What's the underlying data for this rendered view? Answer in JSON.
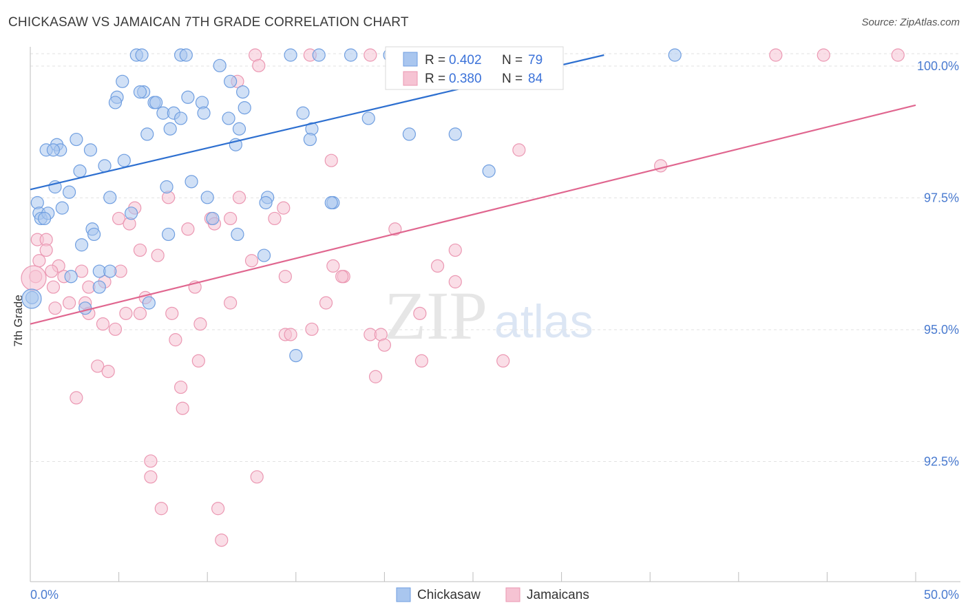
{
  "title": "CHICKASAW VS JAMAICAN 7TH GRADE CORRELATION CHART",
  "source": "Source: ZipAtlas.com",
  "watermark": {
    "left": "ZIP",
    "right": "atlas"
  },
  "legend_top": [
    {
      "r_label": "R = ",
      "r_value": "0.402",
      "n_label": "N = ",
      "n_value": "79"
    },
    {
      "r_label": "R = ",
      "r_value": "0.380",
      "n_label": "N = ",
      "n_value": "84"
    }
  ],
  "legend_bottom": [
    "Chickasaw",
    "Jamaicans"
  ],
  "colors": {
    "blue_fill": "#a9c6ef",
    "blue_stroke": "#6f9ee0",
    "blue_line": "#2d6fd0",
    "pink_fill": "#f6c3d3",
    "pink_stroke": "#eb97b2",
    "pink_line": "#e0668f",
    "tick": "#4a7bd0",
    "grid": "#e2e2e2"
  },
  "chart_data": {
    "type": "scatter",
    "title": "CHICKASAW VS JAMAICAN 7TH GRADE CORRELATION CHART",
    "xlabel": "",
    "ylabel": "7th Grade",
    "xlim": [
      0,
      50
    ],
    "ylim": [
      90.0,
      100.2
    ],
    "x_tick_labels": [
      "0.0%",
      "50.0%"
    ],
    "y_ticks": [
      {
        "value": 100.0,
        "label": "100.0%"
      },
      {
        "value": 97.5,
        "label": "97.5%"
      },
      {
        "value": 95.0,
        "label": "95.0%"
      },
      {
        "value": 92.5,
        "label": "92.5%"
      }
    ],
    "grid": "horizontal dashed",
    "series": [
      {
        "name": "Chickasaw",
        "color": "#a9c6ef",
        "trend": {
          "x": [
            0,
            32.4
          ],
          "y": [
            97.45,
            100.0
          ]
        },
        "points": [
          [
            6.0,
            100.0
          ],
          [
            6.3,
            100.0
          ],
          [
            8.5,
            100.0
          ],
          [
            8.8,
            100.0
          ],
          [
            14.7,
            100.0
          ],
          [
            16.3,
            100.0
          ],
          [
            18.1,
            100.0
          ],
          [
            20.3,
            100.0
          ],
          [
            36.4,
            100.0
          ],
          [
            10.7,
            99.8
          ],
          [
            5.2,
            99.5
          ],
          [
            11.3,
            99.5
          ],
          [
            6.4,
            99.3
          ],
          [
            6.2,
            99.3
          ],
          [
            12.0,
            99.3
          ],
          [
            4.9,
            99.2
          ],
          [
            8.9,
            99.2
          ],
          [
            4.8,
            99.1
          ],
          [
            7.0,
            99.1
          ],
          [
            7.1,
            99.1
          ],
          [
            9.7,
            99.1
          ],
          [
            9.8,
            98.9
          ],
          [
            12.1,
            99.0
          ],
          [
            7.5,
            98.9
          ],
          [
            8.1,
            98.9
          ],
          [
            11.2,
            98.8
          ],
          [
            15.4,
            98.9
          ],
          [
            8.5,
            98.8
          ],
          [
            19.1,
            98.8
          ],
          [
            7.9,
            98.6
          ],
          [
            11.8,
            98.6
          ],
          [
            15.9,
            98.6
          ],
          [
            21.4,
            98.5
          ],
          [
            6.6,
            98.5
          ],
          [
            24.0,
            98.5
          ],
          [
            2.6,
            98.4
          ],
          [
            11.6,
            98.3
          ],
          [
            15.8,
            98.4
          ],
          [
            0.9,
            98.2
          ],
          [
            1.5,
            98.3
          ],
          [
            1.7,
            98.2
          ],
          [
            1.3,
            98.2
          ],
          [
            3.4,
            98.2
          ],
          [
            5.3,
            98.0
          ],
          [
            4.2,
            97.9
          ],
          [
            2.8,
            97.8
          ],
          [
            25.9,
            97.8
          ],
          [
            9.1,
            97.6
          ],
          [
            1.4,
            97.5
          ],
          [
            2.2,
            97.4
          ],
          [
            7.7,
            97.5
          ],
          [
            10.0,
            97.3
          ],
          [
            13.4,
            97.3
          ],
          [
            4.5,
            97.3
          ],
          [
            0.4,
            97.2
          ],
          [
            1.8,
            97.1
          ],
          [
            13.3,
            97.2
          ],
          [
            17.1,
            97.2
          ],
          [
            5.7,
            97.0
          ],
          [
            0.5,
            97.0
          ],
          [
            0.6,
            96.9
          ],
          [
            1.0,
            97.0
          ],
          [
            10.3,
            96.9
          ],
          [
            3.5,
            96.7
          ],
          [
            3.6,
            96.6
          ],
          [
            7.8,
            96.6
          ],
          [
            2.9,
            96.4
          ],
          [
            13.2,
            96.2
          ],
          [
            3.9,
            95.9
          ],
          [
            4.5,
            95.9
          ],
          [
            2.3,
            95.8
          ],
          [
            3.9,
            95.6
          ],
          [
            6.7,
            95.3
          ],
          [
            3.1,
            95.2
          ],
          [
            0.1,
            95.4
          ],
          [
            15.0,
            94.3
          ],
          [
            11.7,
            96.6
          ],
          [
            17.0,
            97.2
          ],
          [
            0.8,
            96.9
          ]
        ]
      },
      {
        "name": "Jamaicans",
        "color": "#f6c3d3",
        "trend": {
          "x": [
            0,
            50
          ],
          "y": [
            94.9,
            99.05
          ]
        },
        "points": [
          [
            12.7,
            100.0
          ],
          [
            15.8,
            100.0
          ],
          [
            19.2,
            100.0
          ],
          [
            27.5,
            100.0
          ],
          [
            42.1,
            100.0
          ],
          [
            44.8,
            100.0
          ],
          [
            12.9,
            99.8
          ],
          [
            11.7,
            99.5
          ],
          [
            27.6,
            98.2
          ],
          [
            17.0,
            98.0
          ],
          [
            35.6,
            97.9
          ],
          [
            7.8,
            97.3
          ],
          [
            11.8,
            97.3
          ],
          [
            14.3,
            97.1
          ],
          [
            5.9,
            97.1
          ],
          [
            10.2,
            96.9
          ],
          [
            11.3,
            96.9
          ],
          [
            5.0,
            96.9
          ],
          [
            10.4,
            96.8
          ],
          [
            5.6,
            96.8
          ],
          [
            8.9,
            96.7
          ],
          [
            20.6,
            96.7
          ],
          [
            0.4,
            96.5
          ],
          [
            0.9,
            96.5
          ],
          [
            6.2,
            96.3
          ],
          [
            24.0,
            96.3
          ],
          [
            7.2,
            96.2
          ],
          [
            0.9,
            96.3
          ],
          [
            12.5,
            96.1
          ],
          [
            1.6,
            96.0
          ],
          [
            17.1,
            96.0
          ],
          [
            23.0,
            96.0
          ],
          [
            1.2,
            95.9
          ],
          [
            5.1,
            95.9
          ],
          [
            2.9,
            95.9
          ],
          [
            1.9,
            95.8
          ],
          [
            0.3,
            95.8
          ],
          [
            14.4,
            95.8
          ],
          [
            17.7,
            95.8
          ],
          [
            4.2,
            95.7
          ],
          [
            17.6,
            95.8
          ],
          [
            24.0,
            95.7
          ],
          [
            1.3,
            95.6
          ],
          [
            3.3,
            95.6
          ],
          [
            9.3,
            95.6
          ],
          [
            6.5,
            95.4
          ],
          [
            2.2,
            95.3
          ],
          [
            11.3,
            95.3
          ],
          [
            3.1,
            95.3
          ],
          [
            16.7,
            95.3
          ],
          [
            1.4,
            95.2
          ],
          [
            3.3,
            95.1
          ],
          [
            5.4,
            95.1
          ],
          [
            8.0,
            95.1
          ],
          [
            6.2,
            95.1
          ],
          [
            9.6,
            94.9
          ],
          [
            4.1,
            94.9
          ],
          [
            4.8,
            94.8
          ],
          [
            15.9,
            94.8
          ],
          [
            14.4,
            94.7
          ],
          [
            14.7,
            94.7
          ],
          [
            19.2,
            94.7
          ],
          [
            19.8,
            94.7
          ],
          [
            8.2,
            94.6
          ],
          [
            20.0,
            94.5
          ],
          [
            22.1,
            94.2
          ],
          [
            26.7,
            94.2
          ],
          [
            9.5,
            94.2
          ],
          [
            3.8,
            94.1
          ],
          [
            4.4,
            94.0
          ],
          [
            19.5,
            93.9
          ],
          [
            8.5,
            93.7
          ],
          [
            2.6,
            93.5
          ],
          [
            8.6,
            93.3
          ],
          [
            6.8,
            92.3
          ],
          [
            6.8,
            92.0
          ],
          [
            12.8,
            92.0
          ],
          [
            7.4,
            91.4
          ],
          [
            10.6,
            91.4
          ],
          [
            10.8,
            90.8
          ],
          [
            49.0,
            100.0
          ],
          [
            0.5,
            96.1
          ],
          [
            13.8,
            96.9
          ],
          [
            22.0,
            95.1
          ]
        ]
      }
    ]
  }
}
